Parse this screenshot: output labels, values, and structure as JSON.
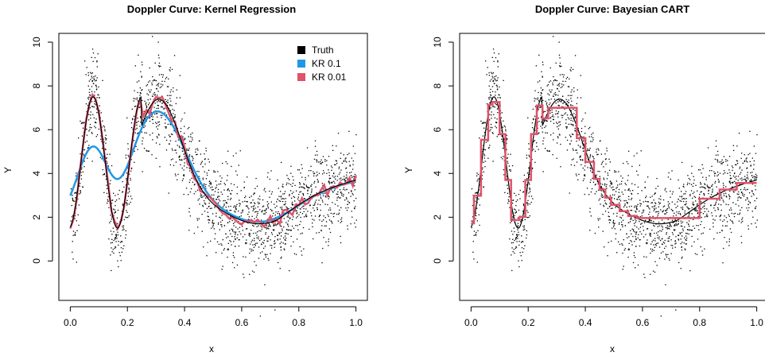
{
  "chart_data": [
    {
      "type": "scatter",
      "title": "Doppler Curve: Kernel Regression",
      "xlabel": "x",
      "ylabel": "Y",
      "xlim": [
        0,
        1
      ],
      "ylim": [
        -1.8,
        10.4
      ],
      "x_ticks": [
        "0.0",
        "0.2",
        "0.4",
        "0.6",
        "0.8",
        "1.0"
      ],
      "y_ticks": [
        "0",
        "2",
        "4",
        "6",
        "8",
        "10"
      ],
      "legend_position": "top-right",
      "series": [
        {
          "name": "Truth",
          "color": "#000000",
          "kind": "truth"
        },
        {
          "name": "KR 0.1",
          "color": "#2297E6",
          "kind": "smooth"
        },
        {
          "name": "KR 0.01",
          "color": "#DF536B",
          "kind": "wiggly"
        }
      ],
      "noise_points": 2000,
      "noise_sd": 1.0
    },
    {
      "type": "scatter",
      "title": "Doppler Curve: Bayesian CART",
      "xlabel": "x",
      "ylabel": "Y",
      "xlim": [
        0,
        1
      ],
      "ylim": [
        -1.8,
        10.4
      ],
      "x_ticks": [
        "0.0",
        "0.2",
        "0.4",
        "0.6",
        "0.8",
        "1.0"
      ],
      "y_ticks": [
        "0",
        "2",
        "4",
        "6",
        "8",
        "10"
      ],
      "series": [
        {
          "color": "#000000",
          "kind": "truth"
        },
        {
          "color": "#DF536B",
          "kind": "step"
        }
      ],
      "noise_points": 2000,
      "noise_sd": 1.0
    }
  ]
}
